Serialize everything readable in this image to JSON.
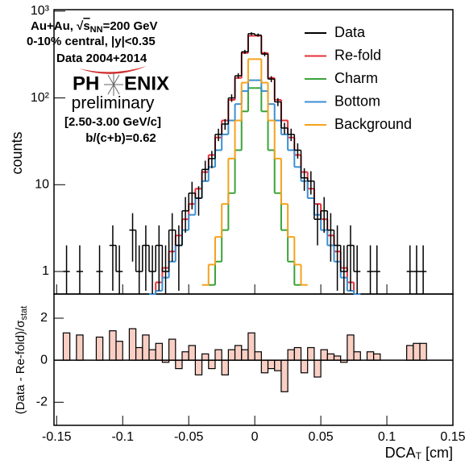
{
  "chart_data": {
    "type": "histogram",
    "bins": [
      -0.15,
      -0.145,
      -0.14,
      -0.135,
      -0.13,
      -0.125,
      -0.12,
      -0.115,
      -0.11,
      -0.105,
      -0.1,
      -0.095,
      -0.09,
      -0.085,
      -0.08,
      -0.075,
      -0.07,
      -0.065,
      -0.06,
      -0.055,
      -0.05,
      -0.045,
      -0.04,
      -0.035,
      -0.03,
      -0.025,
      -0.02,
      -0.015,
      -0.01,
      -0.005,
      0,
      0.005,
      0.01,
      0.015,
      0.02,
      0.025,
      0.03,
      0.035,
      0.04,
      0.045,
      0.05,
      0.055,
      0.06,
      0.065,
      0.07,
      0.075,
      0.08,
      0.085,
      0.09,
      0.095,
      0.1,
      0.105,
      0.11,
      0.115,
      0.12,
      0.125,
      0.13,
      0.135,
      0.14,
      0.145,
      0.15
    ],
    "series": [
      {
        "name": "Data",
        "color": "#000000",
        "values": [
          null,
          1,
          null,
          1,
          null,
          null,
          1,
          null,
          2,
          1,
          null,
          3,
          1,
          2,
          1,
          2,
          1,
          3,
          2,
          5,
          8,
          7,
          15,
          20,
          38,
          50,
          100,
          180,
          340,
          550,
          530,
          320,
          165,
          90,
          45,
          38,
          25,
          12,
          11,
          4,
          5,
          3,
          2,
          1,
          2,
          1,
          null,
          1,
          1,
          null,
          null,
          null,
          null,
          1,
          1,
          1,
          null,
          null,
          null,
          null
        ],
        "errors": [
          null,
          1,
          null,
          1,
          null,
          null,
          1,
          null,
          1.4,
          1,
          null,
          1.7,
          1,
          1.4,
          1,
          1.4,
          1,
          1.7,
          1.4,
          2.2,
          2.8,
          2.6,
          3.9,
          4.5,
          6.2,
          7.1,
          10,
          13,
          18,
          23,
          23,
          18,
          13,
          9.5,
          6.7,
          6.2,
          5,
          3.5,
          3.3,
          2,
          2.2,
          1.7,
          1.4,
          1,
          1.4,
          1,
          null,
          1,
          1,
          null,
          null,
          null,
          null,
          1,
          1,
          1,
          null,
          null,
          null,
          null
        ]
      },
      {
        "name": "Re-fold",
        "color": "#e8303a",
        "values": [
          null,
          null,
          null,
          null,
          null,
          null,
          null,
          null,
          null,
          null,
          null,
          null,
          null,
          null,
          0.5,
          0.75,
          1.1,
          1.7,
          2.6,
          4,
          6,
          9,
          14,
          22,
          35,
          55,
          95,
          170,
          330,
          520,
          520,
          330,
          170,
          95,
          55,
          35,
          22,
          14,
          9,
          6,
          4,
          2.6,
          1.7,
          1.1,
          0.75,
          0.5,
          null,
          null,
          null,
          null,
          null,
          null,
          null,
          null,
          null,
          null,
          null,
          null,
          null,
          null
        ]
      },
      {
        "name": "Charm",
        "color": "#3aa33a",
        "values": [
          null,
          null,
          null,
          null,
          null,
          null,
          null,
          null,
          null,
          null,
          null,
          null,
          null,
          null,
          null,
          null,
          null,
          null,
          null,
          null,
          null,
          null,
          null,
          0.7,
          1.3,
          3,
          8,
          25,
          70,
          130,
          130,
          70,
          25,
          8,
          3,
          1.3,
          0.7,
          null,
          null,
          null,
          null,
          null,
          null,
          null,
          null,
          null,
          null,
          null,
          null,
          null,
          null,
          null,
          null,
          null,
          null,
          null,
          null,
          null,
          null,
          null
        ]
      },
      {
        "name": "Bottom",
        "color": "#3b8fd0",
        "values": [
          null,
          null,
          null,
          null,
          null,
          null,
          null,
          null,
          null,
          null,
          null,
          null,
          null,
          null,
          0.4,
          0.6,
          0.85,
          1.3,
          2,
          3,
          4.5,
          7,
          11,
          16,
          25,
          38,
          55,
          85,
          120,
          160,
          160,
          120,
          85,
          55,
          38,
          25,
          16,
          11,
          7,
          4.5,
          3,
          2,
          1.3,
          0.85,
          0.6,
          0.4,
          null,
          null,
          null,
          null,
          null,
          null,
          null,
          null,
          null,
          null,
          null,
          null,
          null,
          null
        ]
      },
      {
        "name": "Background",
        "color": "#f5a21b",
        "values": [
          null,
          null,
          null,
          null,
          null,
          null,
          null,
          null,
          null,
          null,
          null,
          null,
          null,
          null,
          null,
          null,
          null,
          null,
          null,
          null,
          null,
          null,
          0.7,
          1.2,
          2.5,
          6,
          20,
          55,
          150,
          280,
          280,
          150,
          55,
          20,
          6,
          2.5,
          1.2,
          0.7,
          null,
          null,
          null,
          null,
          null,
          null,
          null,
          null,
          null,
          null,
          null,
          null,
          null,
          null,
          null,
          null,
          null,
          null,
          null,
          null,
          null,
          null
        ]
      }
    ],
    "ratio": {
      "color": "#f9cfc4",
      "values": [
        null,
        1.3,
        null,
        1.2,
        null,
        null,
        1.1,
        null,
        1.4,
        0.9,
        null,
        1.5,
        0.6,
        1.2,
        0.5,
        0.8,
        -0.1,
        1.0,
        -0.4,
        0.4,
        0.7,
        -0.7,
        0.3,
        -0.4,
        0.5,
        -0.7,
        0.5,
        0.7,
        0.5,
        1.3,
        0.4,
        -0.6,
        -0.4,
        -0.5,
        -1.5,
        0.5,
        0.6,
        -0.6,
        0.6,
        -0.8,
        0.5,
        0.3,
        0.2,
        -0.1,
        1.2,
        0.4,
        null,
        0.4,
        0.3,
        null,
        null,
        null,
        null,
        0.7,
        0.8,
        0.8,
        null,
        null,
        null,
        null
      ]
    },
    "xlim": [
      -0.152,
      0.15
    ],
    "xticks": [
      -0.15,
      -0.1,
      -0.05,
      0,
      0.05,
      0.1,
      0.15
    ],
    "ylim": [
      0.55,
      1040
    ],
    "log_y": true,
    "yticks": [
      1,
      10,
      {
        "value": 100,
        "label": "10²"
      },
      {
        "value": 1000,
        "label": "10³"
      }
    ],
    "y2lim": [
      -3.1,
      3.15
    ],
    "y2ticks": [
      -2,
      0,
      2
    ],
    "xlabel": [
      "DCA",
      "T",
      " [cm]"
    ],
    "ylabel": "counts",
    "y2label": [
      "(Data - Re-fold)/σ",
      "stat"
    ],
    "legend": "upper right",
    "annotations": [
      "Au+Au, √",
      "s",
      "NN",
      "=200 GeV",
      "0-10% central, |y|<0.35",
      "Data 2004+2014",
      "PH",
      "ENIX",
      "preliminary",
      "[2.50-3.00 GeV/c]",
      "b/(c+b)=0.62"
    ]
  }
}
